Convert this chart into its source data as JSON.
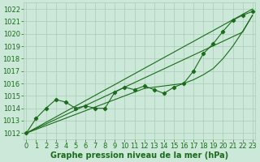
{
  "bg_color": "#cce8d8",
  "grid_color": "#aaccb8",
  "line_color": "#1a6b1a",
  "ylim": [
    1011.5,
    1022.5
  ],
  "xlim": [
    -0.3,
    23.3
  ],
  "yticks": [
    1012,
    1013,
    1014,
    1015,
    1016,
    1017,
    1018,
    1019,
    1020,
    1021,
    1022
  ],
  "xticks": [
    0,
    1,
    2,
    3,
    4,
    5,
    6,
    7,
    8,
    9,
    10,
    11,
    12,
    13,
    14,
    15,
    16,
    17,
    18,
    19,
    20,
    21,
    22,
    23
  ],
  "xlabel": "Graphe pression niveau de la mer (hPa)",
  "main_data": [
    1012.0,
    1013.2,
    1014.0,
    1014.7,
    1014.5,
    1014.0,
    1014.2,
    1014.0,
    1014.0,
    1015.3,
    1015.7,
    1015.5,
    1015.8,
    1015.5,
    1015.2,
    1015.7,
    1016.0,
    1017.0,
    1018.4,
    1019.2,
    1020.2,
    1021.1,
    1021.5,
    1021.8
  ],
  "line_upper": [
    1012.0,
    1012.43,
    1012.87,
    1013.3,
    1013.74,
    1014.17,
    1014.61,
    1015.04,
    1015.48,
    1015.91,
    1016.35,
    1016.78,
    1017.22,
    1017.65,
    1018.09,
    1018.52,
    1018.96,
    1019.39,
    1019.83,
    1020.26,
    1020.7,
    1021.13,
    1021.57,
    1022.0
  ],
  "line_mid": [
    1012.0,
    1012.37,
    1012.74,
    1013.11,
    1013.48,
    1013.85,
    1014.22,
    1014.59,
    1014.96,
    1015.33,
    1015.7,
    1016.07,
    1016.44,
    1016.81,
    1017.18,
    1017.55,
    1017.92,
    1018.29,
    1018.66,
    1019.03,
    1019.4,
    1019.77,
    1020.14,
    1021.5
  ],
  "line_lower": [
    1012.0,
    1012.3,
    1012.6,
    1012.9,
    1013.2,
    1013.5,
    1013.8,
    1014.1,
    1014.4,
    1014.7,
    1015.0,
    1015.3,
    1015.6,
    1015.7,
    1015.8,
    1015.9,
    1016.0,
    1016.3,
    1016.7,
    1017.2,
    1018.0,
    1019.0,
    1020.2,
    1021.5
  ],
  "tick_fontsize": 6.0,
  "xlabel_fontsize": 7.0
}
